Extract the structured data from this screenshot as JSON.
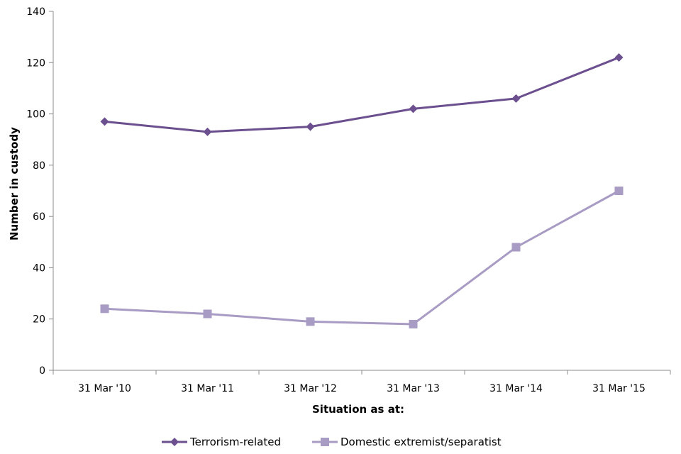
{
  "chart_data": {
    "type": "line",
    "title": "",
    "xlabel": "Situation as at:",
    "ylabel": "Number in custody",
    "categories": [
      "31 Mar '10",
      "31 Mar '11",
      "31 Mar '12",
      "31 Mar '13",
      "31 Mar '14",
      "31 Mar '15"
    ],
    "ylim": [
      0,
      140
    ],
    "yticks": [
      0,
      20,
      40,
      60,
      80,
      100,
      120,
      140
    ],
    "grid": false,
    "legend_position": "bottom",
    "series": [
      {
        "name": "Terrorism-related",
        "values": [
          97,
          93,
          95,
          102,
          106,
          122
        ],
        "color": "#6B4F8F",
        "marker": "diamond"
      },
      {
        "name": "Domestic extremist/separatist",
        "values": [
          24,
          22,
          19,
          18,
          48,
          70
        ],
        "color": "#A89BC4",
        "marker": "square"
      }
    ]
  }
}
